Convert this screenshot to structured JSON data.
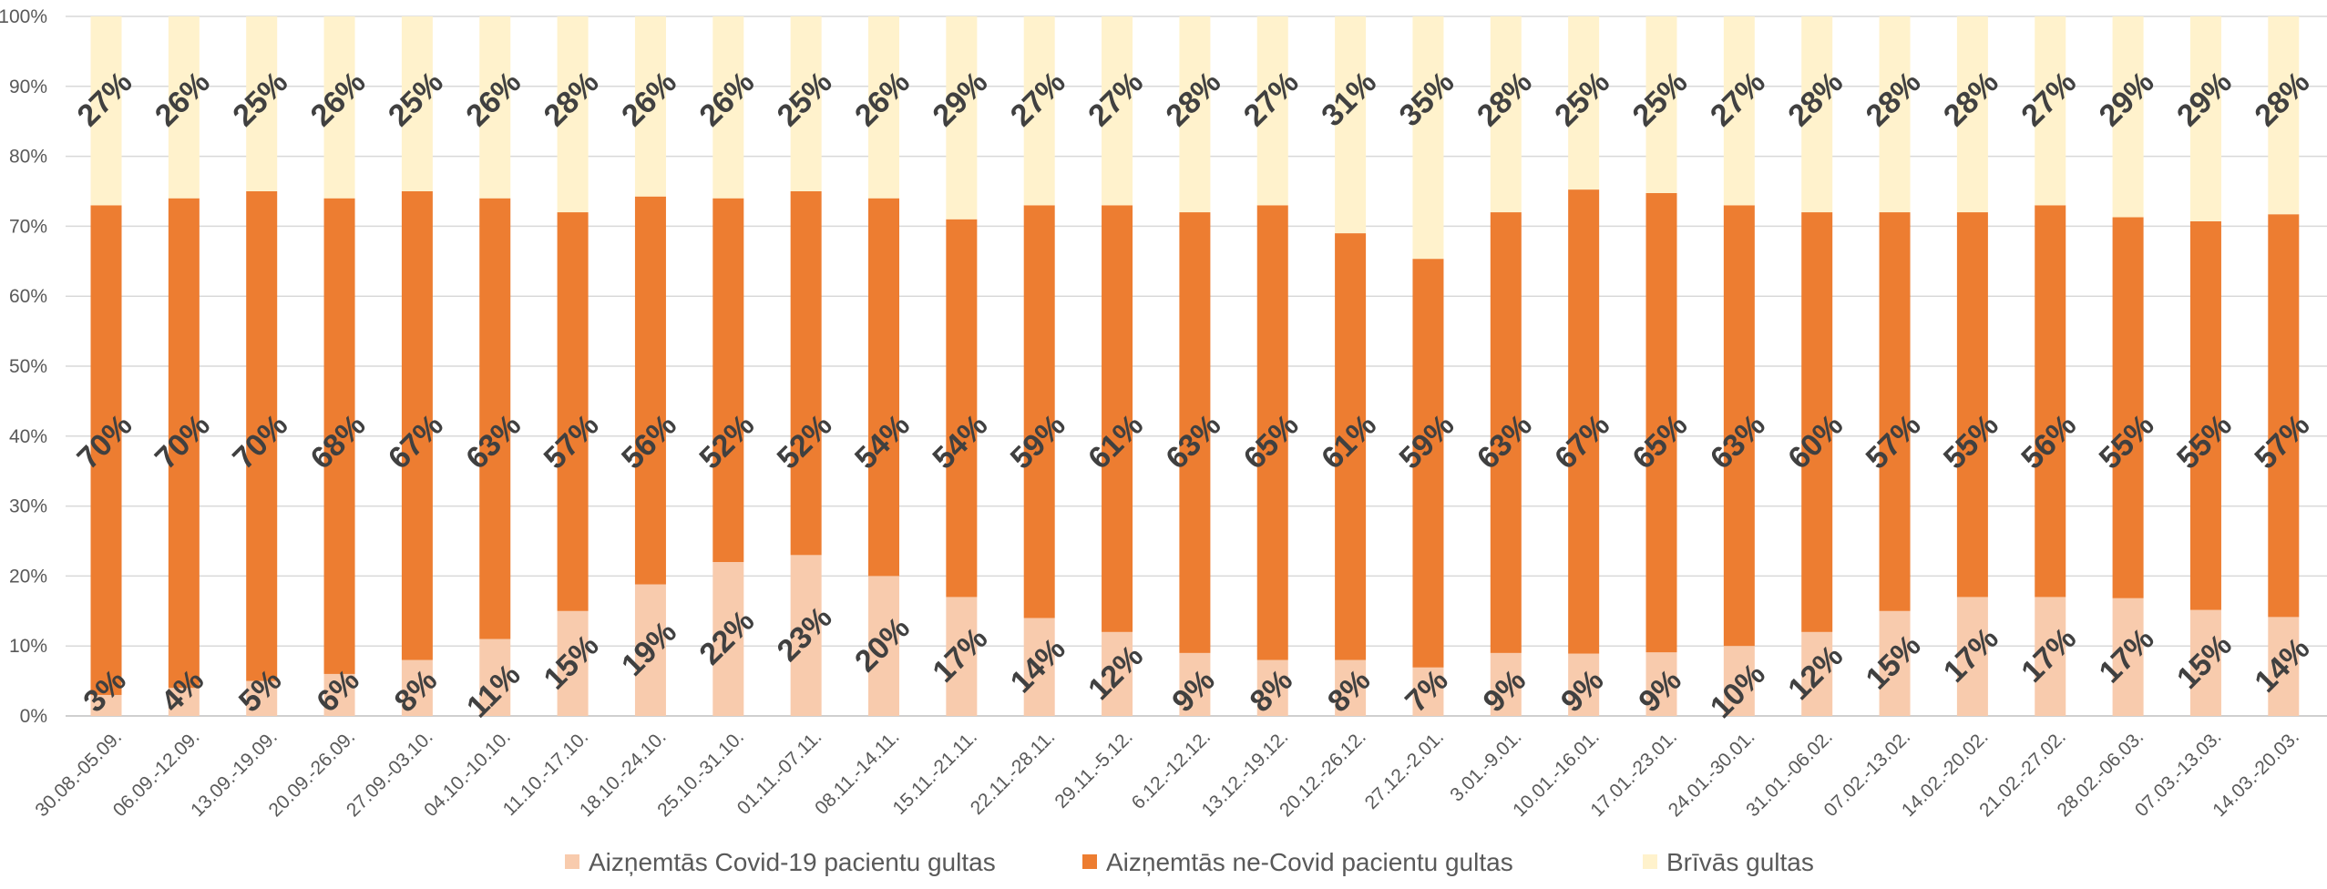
{
  "chart_data": {
    "type": "bar",
    "stacked": "percent",
    "title": "",
    "xlabel": "",
    "ylabel": "",
    "ylim": [
      0,
      100
    ],
    "y_ticks": [
      "0%",
      "10%",
      "20%",
      "30%",
      "40%",
      "50%",
      "60%",
      "70%",
      "80%",
      "90%",
      "100%"
    ],
    "grid": true,
    "legend_position": "bottom",
    "categories": [
      "30.08.-05.09.",
      "06.09.-12.09.",
      "13.09.-19.09.",
      "20.09.-26.09.",
      "27.09.-03.10.",
      "04.10.-10.10.",
      "11.10.-17.10.",
      "18.10.-24.10.",
      "25.10.-31.10.",
      "01.11.-07.11.",
      "08.11.-14.11.",
      "15.11.-21.11.",
      "22.11.-28.11.",
      "29.11.-5.12.",
      "6.12.-12.12.",
      "13.12.-19.12.",
      "20.12.-26.12.",
      "27.12.-2.01.",
      "3.01.-9.01.",
      "10.01.-16.01.",
      "17.01.-23.01.",
      "24.01.-30.01.",
      "31.01.-06.02.",
      "07.02.-13.02.",
      "14.02.-20.02.",
      "21.02.-27.02.",
      "28.02.-06.03.",
      "07.03.-13.03.",
      "14.03.-20.03."
    ],
    "series": [
      {
        "name": "Aizņemtās Covid-19 pacientu gultas",
        "color": "#F8CBAD",
        "values": [
          3,
          4,
          5,
          6,
          8,
          11,
          15,
          19,
          22,
          23,
          20,
          17,
          14,
          12,
          9,
          8,
          8,
          7,
          9,
          9,
          9,
          10,
          12,
          15,
          17,
          17,
          17,
          15,
          14
        ],
        "labels": [
          "3%",
          "4%",
          "5%",
          "6%",
          "8%",
          "11%",
          "15%",
          "19%",
          "22%",
          "23%",
          "20%",
          "17%",
          "14%",
          "12%",
          "9%",
          "8%",
          "8%",
          "7%",
          "9%",
          "9%",
          "9%",
          "10%",
          "12%",
          "15%",
          "17%",
          "17%",
          "17%",
          "15%",
          "14%"
        ]
      },
      {
        "name": "Aizņemtās ne-Covid pacientu gultas",
        "color": "#ED7D31",
        "values": [
          70,
          70,
          70,
          68,
          67,
          63,
          57,
          56,
          52,
          52,
          54,
          54,
          59,
          61,
          63,
          65,
          61,
          59,
          63,
          67,
          65,
          63,
          60,
          57,
          55,
          56,
          55,
          55,
          57
        ],
        "labels": [
          "70%",
          "70%",
          "70%",
          "68%",
          "67%",
          "63%",
          "57%",
          "56%",
          "52%",
          "52%",
          "54%",
          "54%",
          "59%",
          "61%",
          "63%",
          "65%",
          "61%",
          "59%",
          "63%",
          "67%",
          "65%",
          "63%",
          "60%",
          "57%",
          "55%",
          "56%",
          "55%",
          "55%",
          "57%"
        ]
      },
      {
        "name": "Brīvās gultas",
        "color": "#FFF2CC",
        "values": [
          27,
          26,
          25,
          26,
          25,
          26,
          28,
          26,
          26,
          25,
          26,
          29,
          27,
          27,
          28,
          27,
          31,
          35,
          28,
          25,
          25,
          27,
          28,
          28,
          28,
          27,
          29,
          29,
          28
        ],
        "labels": [
          "27%",
          "26%",
          "25%",
          "26%",
          "25%",
          "26%",
          "28%",
          "26%",
          "26%",
          "25%",
          "26%",
          "29%",
          "27%",
          "27%",
          "28%",
          "27%",
          "31%",
          "35%",
          "28%",
          "25%",
          "25%",
          "27%",
          "28%",
          "28%",
          "28%",
          "27%",
          "29%",
          "29%",
          "28%"
        ]
      }
    ]
  }
}
